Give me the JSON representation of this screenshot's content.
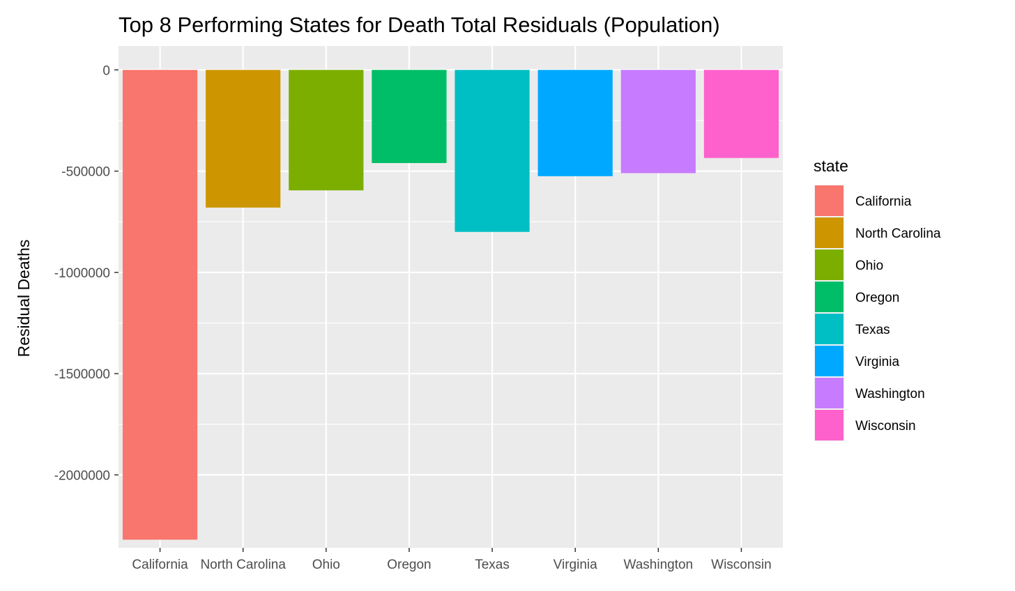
{
  "chart_data": {
    "type": "bar",
    "title": "Top 8 Performing States for Death Total Residuals (Population)",
    "xlabel": "",
    "ylabel": "Residual Deaths",
    "categories": [
      "California",
      "North Carolina",
      "Ohio",
      "Oregon",
      "Texas",
      "Virginia",
      "Washington",
      "Wisconsin"
    ],
    "values": [
      -2320000,
      -680000,
      -595000,
      -460000,
      -800000,
      -525000,
      -510000,
      -435000
    ],
    "colors": [
      "#F8766D",
      "#CD9600",
      "#7CAE00",
      "#00BE67",
      "#00BFC4",
      "#00A9FF",
      "#C77CFF",
      "#FF61CC"
    ],
    "ylim": [
      -2360000,
      118000
    ],
    "yticks": [
      0,
      -500000,
      -1000000,
      -1500000,
      -2000000
    ],
    "ytick_labels": [
      "0",
      "-500000",
      "-1000000",
      "-1500000",
      "-2000000"
    ],
    "legend": {
      "title": "state",
      "placement": "right",
      "entries": [
        "California",
        "North Carolina",
        "Ohio",
        "Oregon",
        "Texas",
        "Virginia",
        "Washington",
        "Wisconsin"
      ]
    },
    "grid": true,
    "panel_background": "#EBEBEB",
    "grid_color": "#FFFFFF"
  }
}
